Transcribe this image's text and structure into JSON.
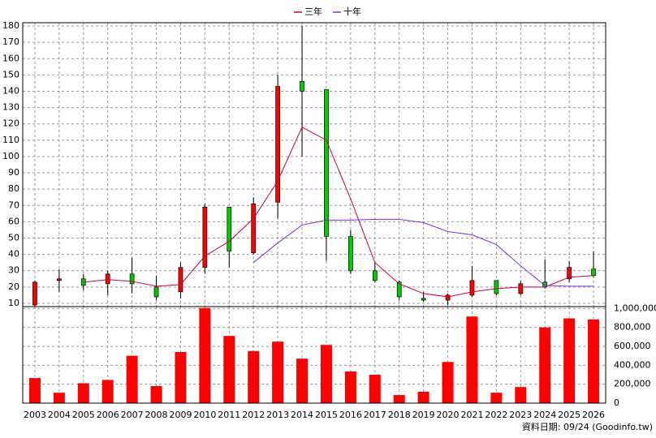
{
  "chart_data": [
    {
      "type": "candlestick",
      "open": [
        9,
        24,
        25,
        22,
        28,
        20,
        17,
        32,
        69,
        41,
        72,
        146,
        141,
        51,
        30,
        23,
        13,
        12,
        15,
        24,
        16,
        23,
        25,
        31
      ],
      "high": [
        24,
        31,
        28,
        30,
        38,
        27,
        35,
        71,
        69,
        75,
        150,
        180,
        141,
        55,
        35,
        24,
        17,
        16,
        33,
        24,
        24,
        37,
        36,
        42
      ],
      "low": [
        8,
        17,
        18,
        15,
        16,
        12,
        13,
        28,
        32,
        40,
        62,
        100,
        36,
        28,
        23,
        12,
        11,
        9,
        14,
        15,
        15,
        19,
        23,
        26
      ],
      "close": [
        23,
        25,
        21,
        28,
        22,
        14,
        32,
        69,
        42,
        71,
        143,
        140,
        51,
        30,
        24,
        14,
        12,
        15,
        24,
        16,
        22,
        20,
        32,
        27
      ],
      "up_color": "#ff0000",
      "down_color": "#00cc00",
      "series": [
        {
          "name": "三年",
          "color": "#cc0044",
          "values": [
            null,
            null,
            23,
            24.5,
            23.5,
            20.5,
            21.5,
            39,
            48,
            62,
            85,
            118,
            110,
            74,
            35,
            22,
            16,
            14,
            17,
            19,
            20,
            20,
            26,
            27
          ]
        },
        {
          "name": "十年",
          "color": "#7b2fd6",
          "values": [
            null,
            null,
            null,
            null,
            null,
            null,
            null,
            null,
            null,
            35,
            47,
            58,
            61,
            61,
            61.5,
            61.5,
            59.5,
            54,
            52,
            46,
            33,
            21,
            20.5,
            20.5
          ]
        }
      ],
      "ylim": [
        8,
        182
      ],
      "yticks": [
        10,
        20,
        30,
        40,
        50,
        60,
        70,
        80,
        90,
        100,
        110,
        120,
        130,
        140,
        150,
        160,
        170,
        180
      ],
      "grid": true
    },
    {
      "type": "bar",
      "categories": [
        "2003",
        "2004",
        "2005",
        "2006",
        "2007",
        "2008",
        "2009",
        "2010",
        "2011",
        "2012",
        "2013",
        "2014",
        "2015",
        "2016",
        "2017",
        "2018",
        "2019",
        "2020",
        "2021",
        "2022",
        "2023",
        "2024",
        "2025",
        "2026"
      ],
      "values": [
        265000,
        110000,
        210000,
        245000,
        500000,
        180000,
        540000,
        1005000,
        710000,
        550000,
        650000,
        470000,
        615000,
        335000,
        300000,
        85000,
        120000,
        435000,
        915000,
        110000,
        170000,
        800000,
        895000,
        885000
      ],
      "color": "#ff0000",
      "ylim": [
        0,
        1020000
      ],
      "yticks": [
        0,
        {
          "value": 200000,
          "label": "200,000"
        },
        {
          "value": 400000,
          "label": "400,000"
        },
        {
          "value": 600000,
          "label": "600,000"
        },
        {
          "value": 800000,
          "label": "800,000"
        },
        {
          "value": 1000000,
          "label": "1,000,000"
        }
      ],
      "grid": true,
      "footnote": "資料日期: 09/24 (Goodinfo.tw)"
    }
  ]
}
